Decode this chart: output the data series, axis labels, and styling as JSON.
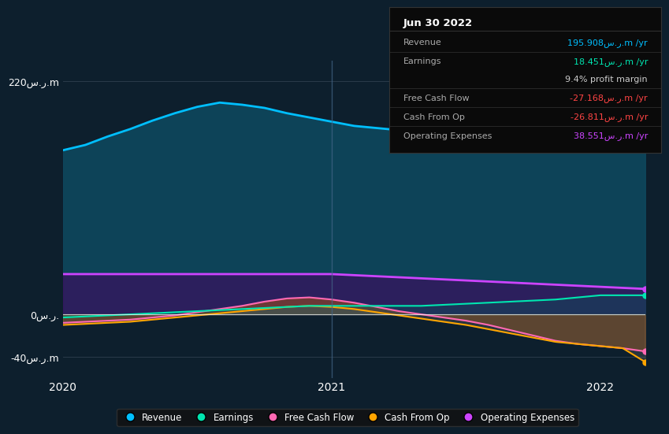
{
  "background_color": "#0d1f2d",
  "plot_bg_color": "#0d1f2d",
  "title": "Jun 30 2022",
  "ylim": [
    -60,
    240
  ],
  "yticks": [
    -40,
    0,
    220
  ],
  "ytick_labels": [
    "-40س.ر.m",
    "0س.ر.",
    "220س.ر.m"
  ],
  "xlabel_ticks": [
    0,
    12,
    24
  ],
  "xlabel_labels": [
    "2020",
    "2021",
    "2022"
  ],
  "vline_x": 12,
  "info_rows": [
    {
      "label": "Revenue",
      "value": "195.908س.ر.m /yr",
      "color": "#00bfff",
      "divider": true
    },
    {
      "label": "Earnings",
      "value": "18.451س.ر.m /yr",
      "color": "#00e5b0",
      "divider": false
    },
    {
      "label": "",
      "value": "9.4% profit margin",
      "color": "#cccccc",
      "divider": true
    },
    {
      "label": "Free Cash Flow",
      "value": "-27.168س.ر.m /yr",
      "color": "#ff4444",
      "divider": true
    },
    {
      "label": "Cash From Op",
      "value": "-26.811س.ر.m /yr",
      "color": "#ff4444",
      "divider": true
    },
    {
      "label": "Operating Expenses",
      "value": "38.551س.ر.m /yr",
      "color": "#cc44ff",
      "divider": false
    }
  ],
  "series": {
    "revenue": {
      "color": "#00bfff",
      "fill_color": "#0d4a60",
      "x": [
        0,
        1,
        2,
        3,
        4,
        5,
        6,
        7,
        8,
        9,
        10,
        11,
        12,
        13,
        14,
        15,
        16,
        17,
        18,
        19,
        20,
        21,
        22,
        23,
        24,
        25,
        26
      ],
      "y": [
        155,
        160,
        168,
        175,
        183,
        190,
        196,
        200,
        198,
        195,
        190,
        186,
        182,
        178,
        176,
        174,
        175,
        176,
        178,
        182,
        185,
        188,
        192,
        195,
        198,
        202,
        206
      ]
    },
    "earnings": {
      "color": "#00e5b0",
      "fill_color": "#006655",
      "x": [
        0,
        1,
        2,
        3,
        4,
        5,
        6,
        7,
        8,
        9,
        10,
        11,
        12,
        13,
        14,
        15,
        16,
        17,
        18,
        19,
        20,
        21,
        22,
        23,
        24,
        25,
        26
      ],
      "y": [
        -3,
        -2,
        -1,
        0,
        1,
        2,
        3,
        4,
        5,
        6,
        7,
        8,
        8,
        8,
        8,
        8,
        8,
        9,
        10,
        11,
        12,
        13,
        14,
        16,
        18,
        18,
        18
      ]
    },
    "free_cash_flow": {
      "color": "#ff69b4",
      "fill_color": "#cc6000",
      "x": [
        0,
        1,
        2,
        3,
        4,
        5,
        6,
        7,
        8,
        9,
        10,
        11,
        12,
        13,
        14,
        15,
        16,
        17,
        18,
        19,
        20,
        21,
        22,
        23,
        24,
        25,
        26
      ],
      "y": [
        -8,
        -7,
        -6,
        -5,
        -3,
        -1,
        2,
        5,
        8,
        12,
        15,
        16,
        14,
        11,
        7,
        3,
        0,
        -3,
        -6,
        -10,
        -15,
        -20,
        -25,
        -28,
        -30,
        -32,
        -35
      ]
    },
    "cash_from_op": {
      "color": "#ffa500",
      "fill_color": "#666666",
      "x": [
        0,
        1,
        2,
        3,
        4,
        5,
        6,
        7,
        8,
        9,
        10,
        11,
        12,
        13,
        14,
        15,
        16,
        17,
        18,
        19,
        20,
        21,
        22,
        23,
        24,
        25,
        26
      ],
      "y": [
        -10,
        -9,
        -8,
        -7,
        -5,
        -3,
        -1,
        1,
        3,
        5,
        7,
        8,
        7,
        5,
        2,
        -1,
        -4,
        -7,
        -10,
        -14,
        -18,
        -22,
        -26,
        -28,
        -30,
        -32,
        -45
      ]
    },
    "operating_expenses": {
      "color": "#cc44ff",
      "fill_color": "#3a1060",
      "x": [
        0,
        1,
        2,
        3,
        4,
        5,
        6,
        7,
        8,
        9,
        10,
        11,
        12,
        13,
        14,
        15,
        16,
        17,
        18,
        19,
        20,
        21,
        22,
        23,
        24,
        25,
        26
      ],
      "y": [
        38,
        38,
        38,
        38,
        38,
        38,
        38,
        38,
        38,
        38,
        38,
        38,
        38,
        37,
        36,
        35,
        34,
        33,
        32,
        31,
        30,
        29,
        28,
        27,
        26,
        25,
        24
      ]
    }
  },
  "legend": [
    {
      "label": "Revenue",
      "color": "#00bfff"
    },
    {
      "label": "Earnings",
      "color": "#00e5b0"
    },
    {
      "label": "Free Cash Flow",
      "color": "#ff69b4"
    },
    {
      "label": "Cash From Op",
      "color": "#ffa500"
    },
    {
      "label": "Operating Expenses",
      "color": "#cc44ff"
    }
  ]
}
